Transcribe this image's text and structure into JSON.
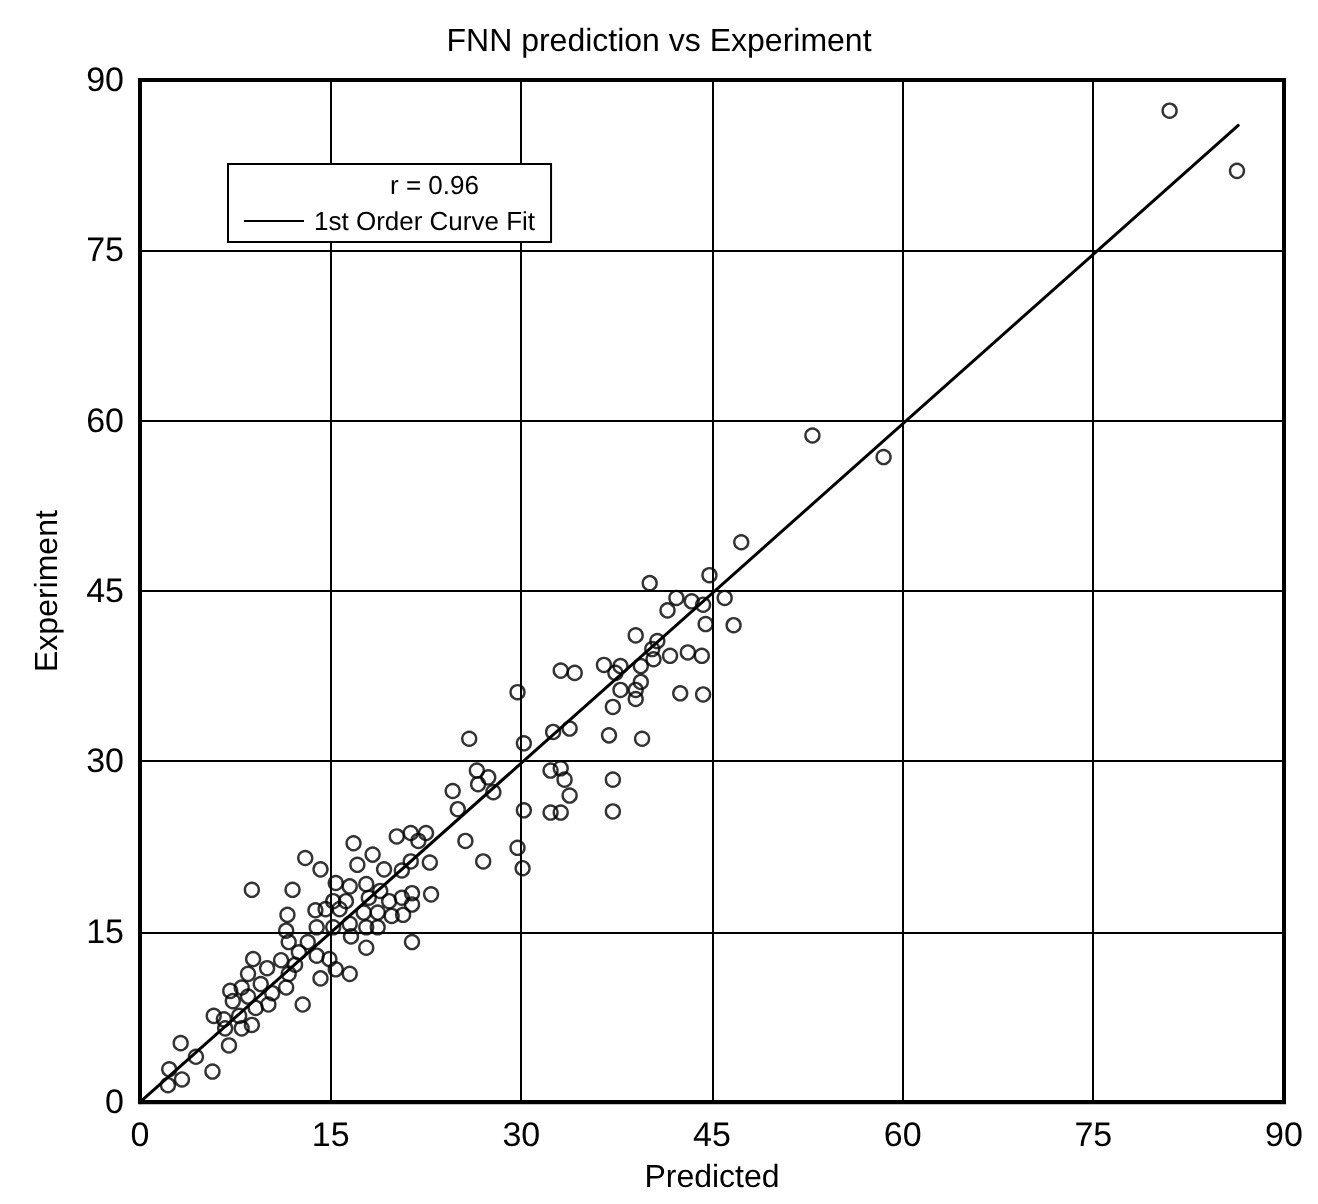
{
  "chart_data": {
    "type": "scatter",
    "title": "FNN prediction vs Experiment",
    "xlabel": "Predicted",
    "ylabel": "Experiment",
    "xlim": [
      0,
      90
    ],
    "ylim": [
      0,
      90
    ],
    "xticks": [
      0,
      15,
      30,
      45,
      60,
      75,
      90
    ],
    "yticks": [
      0,
      15,
      30,
      45,
      60,
      75,
      90
    ],
    "grid": true,
    "legend": "top left",
    "marker": "circle",
    "annotations": [
      "r = 0.96"
    ],
    "series": [
      {
        "color": "#000000",
        "x": [
          81,
          86.3,
          52.9,
          58.5,
          47.3,
          44.8,
          40.1,
          42.2,
          43.4,
          44.3,
          46.0,
          41.5,
          44.5,
          46.7,
          39.0,
          40.7,
          40.3,
          41.7,
          43.1,
          44.2,
          40.4,
          36.5,
          37.8,
          37.4,
          39.4,
          39.4,
          33.1,
          34.2,
          37.8,
          39.0,
          42.5,
          44.3,
          39.0,
          37.2,
          29.7,
          33.8,
          32.5,
          36.9,
          39.5,
          30.2,
          25.9,
          32.3,
          33.1,
          33.4,
          37.2,
          33.8,
          26.5,
          27.4,
          26.6,
          27.8,
          24.6,
          25.0,
          30.2,
          32.3,
          33.1,
          37.2,
          22.5,
          21.9,
          25.6,
          29.7,
          21.3,
          22.8,
          27.0,
          30.1,
          21.4,
          22.9,
          21.3,
          20.2,
          16.8,
          18.3,
          13.0,
          14.2,
          17.1,
          19.2,
          20.6,
          8.8,
          12.0,
          15.4,
          16.5,
          17.8,
          18.9,
          15.2,
          16.2,
          18.0,
          19.6,
          20.6,
          21.4,
          13.8,
          14.6,
          15.7,
          17.6,
          18.7,
          19.8,
          20.7,
          11.6,
          11.5,
          13.9,
          15.2,
          16.5,
          17.8,
          18.7,
          11.7,
          16.6,
          13.2,
          21.4,
          17.8,
          12.5,
          13.9,
          14.9,
          8.9,
          11.1,
          12.2,
          15.4,
          16.5,
          10.0,
          8.5,
          14.2,
          11.7,
          7.1,
          8.0,
          9.5,
          10.4,
          11.5,
          7.3,
          8.5,
          9.1,
          10.1,
          12.8,
          5.8,
          6.6,
          7.8,
          6.7,
          8.0,
          8.8,
          7.0,
          3.2,
          4.4,
          2.3,
          5.7,
          2.2,
          3.3
        ],
        "values": [
          87.3,
          82.0,
          58.7,
          56.8,
          49.3,
          46.4,
          45.7,
          44.4,
          44.1,
          43.8,
          44.4,
          43.3,
          42.1,
          42.0,
          41.1,
          40.6,
          39.9,
          39.3,
          39.6,
          39.3,
          39.0,
          38.5,
          38.4,
          37.8,
          38.4,
          37.0,
          38.0,
          37.8,
          36.3,
          36.3,
          36.0,
          35.9,
          35.5,
          34.8,
          36.1,
          32.9,
          32.6,
          32.3,
          32.0,
          31.6,
          32.0,
          29.2,
          29.4,
          28.4,
          28.4,
          27.0,
          29.2,
          28.6,
          28.0,
          27.3,
          27.4,
          25.8,
          25.7,
          25.5,
          25.5,
          25.6,
          23.7,
          23.0,
          23.0,
          22.4,
          21.2,
          21.1,
          21.2,
          20.6,
          18.4,
          18.3,
          23.7,
          23.4,
          22.8,
          21.8,
          21.5,
          20.5,
          20.9,
          20.5,
          20.4,
          18.7,
          18.7,
          19.3,
          19.0,
          19.2,
          18.6,
          17.7,
          17.7,
          18.0,
          17.7,
          18.0,
          17.4,
          16.9,
          17.0,
          17.0,
          16.7,
          16.7,
          16.4,
          16.5,
          16.5,
          15.1,
          15.4,
          15.4,
          15.7,
          15.4,
          15.4,
          14.1,
          14.6,
          14.1,
          14.1,
          13.6,
          13.2,
          12.9,
          12.6,
          12.6,
          12.5,
          12.1,
          11.7,
          11.3,
          11.8,
          11.3,
          10.9,
          11.3,
          9.8,
          10.1,
          10.4,
          9.6,
          10.1,
          8.9,
          9.3,
          8.3,
          8.6,
          8.6,
          7.6,
          7.3,
          7.6,
          6.5,
          6.5,
          6.8,
          5.0,
          5.2,
          4.0,
          2.9,
          2.7,
          1.5,
          2.0
        ]
      },
      {
        "type": "line",
        "name": "1st Order Curve Fit",
        "color": "#000000",
        "marker": "none",
        "line_style": "solid",
        "x": [
          0,
          86.4
        ],
        "values": [
          0,
          86
        ]
      }
    ]
  }
}
